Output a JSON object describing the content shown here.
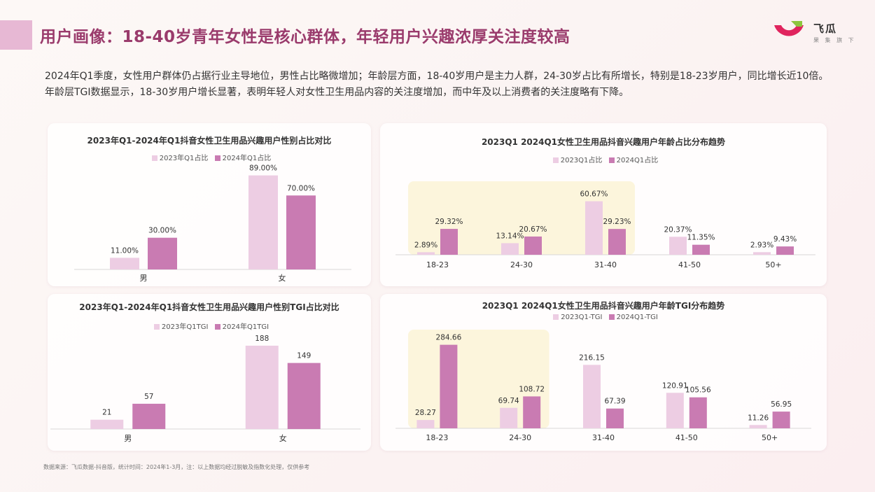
{
  "header": {
    "title": "用户画像：18-40岁青年女性是核心群体，年轻用户兴趣浓厚关注度较高",
    "logo_name": "飞瓜",
    "logo_sub": "果 集 旗 下"
  },
  "intro": "2024年Q1季度，女性用户群体仍占据行业主导地位，男性占比略微增加；年龄层方面，18-40岁用户是主力人群，24-30岁占比有所增长，特别是18-23岁用户，同比增长近10倍。年龄层TGI数据显示，18-30岁用户增长显著，表明年轻人对女性卫生用品内容的关注度增加，而中年及以上消费者的关注度略有下降。",
  "footnote": "数据来源：飞瓜数据-抖音版，统计时间：2024年1-3月，注：以上数据均经过脱敏及指数化处理，仅供参考",
  "colors": {
    "light": "#edcde3",
    "dark": "#c97bb2",
    "highlight": "#fcf5dc",
    "title": "#9a3b6c"
  },
  "chart_data": [
    {
      "type": "bar",
      "title": "2023年Q1-2024年Q1抖音女性卫生用品兴趣用户性别占比对比",
      "categories": [
        "男",
        "女"
      ],
      "series": [
        {
          "name": "2023年Q1占比",
          "values": [
            11.0,
            89.0
          ],
          "labels": [
            "11.00%",
            "89.00%"
          ]
        },
        {
          "name": "2024年Q1占比",
          "values": [
            30.0,
            70.0
          ],
          "labels": [
            "30.00%",
            "70.00%"
          ]
        }
      ],
      "ylim": [
        0,
        100
      ],
      "highlight": []
    },
    {
      "type": "bar",
      "title": "2023Q1 2024Q1女性卫生用品抖音兴趣用户年龄占比分布趋势",
      "categories": [
        "18-23",
        "24-30",
        "31-40",
        "41-50",
        "50+"
      ],
      "series": [
        {
          "name": "2023Q1占比",
          "values": [
            2.89,
            13.14,
            60.67,
            20.37,
            2.93
          ],
          "labels": [
            "2.89%",
            "13.14%",
            "60.67%",
            "20.37%",
            "2.93%"
          ]
        },
        {
          "name": "2024Q1占比",
          "values": [
            29.32,
            20.67,
            29.23,
            11.35,
            9.43
          ],
          "labels": [
            "29.32%",
            "20.67%",
            "29.23%",
            "11.35%",
            "9.43%"
          ]
        }
      ],
      "ylim": [
        0,
        100
      ],
      "highlight": [
        "18-23",
        "24-30",
        "31-40"
      ]
    },
    {
      "type": "bar",
      "title": "2023年Q1-2024年Q1抖音女性卫生用品兴趣用户性别TGI占比对比",
      "categories": [
        "男",
        "女"
      ],
      "series": [
        {
          "name": "2023年Q1TGI",
          "values": [
            21,
            188
          ],
          "labels": [
            "21",
            "188"
          ]
        },
        {
          "name": "2024年Q1TGI",
          "values": [
            57,
            149
          ],
          "labels": [
            "57",
            "149"
          ]
        }
      ],
      "ylim": [
        0,
        210
      ],
      "highlight": []
    },
    {
      "type": "bar",
      "title": "2023Q1 2024Q1女性卫生用品抖音兴趣用户年龄TGI分布趋势",
      "categories": [
        "18-23",
        "24-30",
        "31-40",
        "41-50",
        "50+"
      ],
      "series": [
        {
          "name": "2023Q1-TGI",
          "values": [
            28.27,
            69.74,
            216.15,
            120.91,
            11.26
          ],
          "labels": [
            "28.27",
            "69.74",
            "216.15",
            "120.91",
            "11.26"
          ]
        },
        {
          "name": "2024Q1-TGI",
          "values": [
            284.66,
            108.72,
            67.39,
            105.56,
            56.95
          ],
          "labels": [
            "284.66",
            "108.72",
            "67.39",
            "105.56",
            "56.95"
          ]
        }
      ],
      "ylim": [
        0,
        310
      ],
      "highlight": [
        "18-23",
        "24-30"
      ]
    }
  ]
}
